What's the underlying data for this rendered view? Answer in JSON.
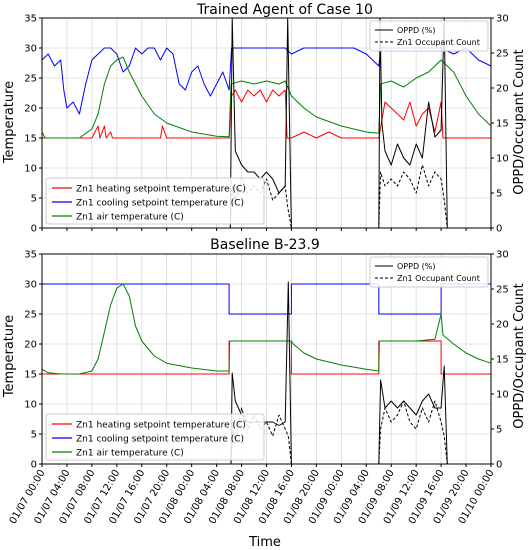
{
  "figure": {
    "xlabel": "Time"
  },
  "colors": {
    "heating": "#ff0000",
    "cooling": "#0000ff",
    "air": "#008000",
    "oppd": "#000000",
    "occupant": "#000000",
    "grid": "#d9d9d9"
  },
  "chart_data": [
    {
      "type": "line",
      "title": "Trained Agent of Case 10",
      "ylabel": "Temperature",
      "y2label": "OPPD/Occupant Count",
      "xlabel": "",
      "ylim": [
        0,
        35
      ],
      "y2lim": [
        0,
        30
      ],
      "yticks": [
        "0",
        "5",
        "10",
        "15",
        "20",
        "25",
        "30",
        "35"
      ],
      "y2ticks": [
        "0",
        "5",
        "10",
        "15",
        "20",
        "25",
        "30"
      ],
      "xlim": [
        0,
        72
      ],
      "grid": true,
      "legend_left": [
        "Zn1 heating setpoint temperature (C)",
        "Zn1 cooling setpoint temperature (C)",
        "Zn1 air temperature (C)"
      ],
      "legend_left_placement": "lower-left",
      "legend_right": [
        "OPPD (%)",
        "Zn1 Occupant Count"
      ],
      "legend_right_placement": "upper-right",
      "series": [
        {
          "name": "Zn1 heating setpoint temperature (C)",
          "axis": "left",
          "color": "#ff0000",
          "style": "solid",
          "x": [
            0,
            4,
            8,
            9,
            9.3,
            10,
            10.3,
            11,
            11.3,
            12,
            16,
            19,
            19.3,
            20,
            24,
            28,
            30,
            30.4,
            31,
            32,
            33,
            34,
            35,
            36,
            37,
            38,
            39,
            39.3,
            40,
            42,
            44,
            46,
            48,
            52,
            54,
            55,
            56,
            57,
            58,
            59,
            60,
            61,
            62,
            63,
            64,
            64.3,
            66,
            70,
            72
          ],
          "y": [
            15,
            15,
            15,
            17,
            15,
            17,
            15,
            16,
            15,
            15,
            15,
            15,
            17,
            15,
            15,
            15,
            15,
            22,
            23,
            21,
            23,
            22,
            23,
            21,
            23,
            22,
            23,
            15,
            15,
            16,
            15,
            16,
            15,
            15,
            15,
            21,
            20,
            19,
            18,
            21,
            17,
            19,
            20,
            16,
            21,
            15,
            15,
            15,
            15
          ]
        },
        {
          "name": "Zn1 cooling setpoint temperature (C)",
          "axis": "left",
          "color": "#0000ff",
          "style": "solid",
          "x": [
            0,
            1,
            2,
            3,
            3.5,
            4,
            5,
            6,
            7,
            8,
            9,
            10,
            11,
            12,
            13,
            14,
            15,
            16,
            17,
            18,
            19,
            20,
            21,
            22,
            23,
            24,
            25,
            26,
            27,
            28,
            29,
            30,
            30.4,
            32,
            34,
            36,
            38,
            39,
            40,
            42,
            44,
            46,
            48,
            50,
            52,
            54,
            54.4,
            56,
            58,
            60,
            62,
            64,
            66,
            68,
            70,
            72
          ],
          "y": [
            28,
            29,
            27,
            28,
            23,
            20,
            21,
            19,
            24,
            28,
            29,
            30,
            30,
            29,
            26,
            27,
            30,
            29,
            30,
            30,
            28,
            30,
            29,
            24,
            23,
            26,
            27,
            24,
            22,
            24,
            26,
            23,
            30,
            30,
            30,
            30,
            30,
            30,
            29,
            30,
            30,
            30,
            30,
            30,
            29,
            27,
            30,
            30,
            30,
            30,
            30,
            30,
            29,
            30,
            28,
            27
          ]
        },
        {
          "name": "Zn1 air temperature (C)",
          "axis": "left",
          "color": "#008000",
          "style": "solid",
          "x": [
            0,
            0.5,
            2,
            4,
            6,
            8,
            9,
            10,
            11,
            12,
            13,
            14,
            15,
            16,
            18,
            20,
            24,
            28,
            30,
            30.3,
            32,
            34,
            36,
            38,
            39,
            40,
            42,
            44,
            48,
            52,
            54,
            54.3,
            56,
            58,
            60,
            62,
            64,
            66,
            68,
            70,
            72
          ],
          "y": [
            16,
            15,
            15,
            15,
            15,
            16.5,
            19,
            24,
            27,
            28,
            28.5,
            26,
            24,
            22,
            19,
            17.5,
            16,
            15.3,
            15.2,
            24,
            24.5,
            24,
            24.5,
            24,
            24.5,
            22,
            20,
            18.5,
            17,
            16,
            15.8,
            24,
            24.5,
            23.5,
            25,
            26,
            28,
            26,
            22,
            19,
            17
          ]
        },
        {
          "name": "OPPD (%)",
          "axis": "right",
          "color": "#000000",
          "style": "solid",
          "x": [
            0,
            30.2,
            30.5,
            31,
            32,
            33,
            34,
            35,
            36,
            37,
            38,
            39,
            39.4,
            40,
            54,
            54.2,
            54.5,
            55,
            56,
            57,
            58,
            59,
            60,
            61,
            62,
            63,
            64,
            64.5,
            65,
            72
          ],
          "y": [
            0,
            0,
            30,
            11,
            9,
            8,
            8,
            7,
            8,
            7,
            5,
            6,
            30,
            0,
            0,
            30,
            15,
            11,
            9,
            12,
            10,
            9,
            12,
            10,
            18,
            13,
            14,
            30,
            0,
            0
          ]
        },
        {
          "name": "Zn1 Occupant Count",
          "axis": "right",
          "color": "#000000",
          "style": "dashed",
          "x": [
            0,
            30.2,
            30.5,
            31,
            32,
            33,
            34,
            35,
            36,
            37,
            38,
            39,
            39.4,
            40,
            54,
            54.3,
            55,
            56,
            57,
            58,
            59,
            60,
            61,
            62,
            63,
            64,
            64.5,
            65,
            72
          ],
          "y": [
            0,
            0,
            6,
            4,
            7,
            5,
            6,
            5,
            7,
            4,
            5,
            6,
            3,
            0,
            0,
            8,
            6,
            7,
            6,
            8,
            7,
            5,
            9,
            6,
            8,
            7,
            4,
            0,
            0
          ]
        }
      ]
    },
    {
      "type": "line",
      "title": "Baseline B-23.9",
      "ylabel": "Temperature",
      "y2label": "OPPD/Occupant Count",
      "xlabel": "Time",
      "ylim": [
        0,
        35
      ],
      "y2lim": [
        0,
        30
      ],
      "yticks": [
        "0",
        "5",
        "10",
        "15",
        "20",
        "25",
        "30",
        "35"
      ],
      "y2ticks": [
        "0",
        "5",
        "10",
        "15",
        "20",
        "25",
        "30"
      ],
      "xlim": [
        0,
        72
      ],
      "xticks": [
        "01/07 00:00",
        "01/07 04:00",
        "01/07 08:00",
        "01/07 12:00",
        "01/07 16:00",
        "01/07 20:00",
        "01/08 00:00",
        "01/08 04:00",
        "01/08 08:00",
        "01/08 12:00",
        "01/08 16:00",
        "01/08 20:00",
        "01/09 00:00",
        "01/09 04:00",
        "01/09 08:00",
        "01/09 12:00",
        "01/09 16:00",
        "01/09 20:00",
        "01/10 00:00"
      ],
      "grid": true,
      "legend_left": [
        "Zn1 heating setpoint temperature (C)",
        "Zn1 cooling setpoint temperature (C)",
        "Zn1 air temperature (C)"
      ],
      "legend_left_placement": "lower-left",
      "legend_right": [
        "OPPD (%)",
        "Zn1 Occupant Count"
      ],
      "legend_right_placement": "upper-right",
      "series": [
        {
          "name": "Zn1 heating setpoint temperature (C)",
          "axis": "left",
          "color": "#ff0000",
          "style": "solid",
          "x": [
            0,
            30,
            30,
            40,
            40,
            54,
            54,
            64,
            64,
            72
          ],
          "y": [
            15,
            15,
            20.5,
            20.5,
            15,
            15,
            20.5,
            20.5,
            15,
            15
          ]
        },
        {
          "name": "Zn1 cooling setpoint temperature (C)",
          "axis": "left",
          "color": "#0000ff",
          "style": "solid",
          "x": [
            0,
            30,
            30,
            40,
            40,
            54,
            54,
            64,
            64,
            72
          ],
          "y": [
            30,
            30,
            25,
            25,
            30,
            30,
            25,
            25,
            30,
            30
          ]
        },
        {
          "name": "Zn1 air temperature (C)",
          "axis": "left",
          "color": "#008000",
          "style": "solid",
          "x": [
            0,
            1,
            3,
            6,
            8,
            9,
            10,
            11,
            12,
            13,
            14,
            15,
            16,
            18,
            20,
            24,
            28,
            30,
            30.1,
            32,
            36,
            40,
            40.3,
            42,
            44,
            48,
            52,
            54,
            54.1,
            56,
            60,
            63,
            64,
            64.3,
            66,
            68,
            70,
            72
          ],
          "y": [
            15.8,
            15.2,
            15,
            15,
            15.5,
            17.5,
            22,
            26.5,
            29.3,
            30,
            28,
            23,
            20.5,
            18,
            16.8,
            16,
            15.5,
            15.5,
            20.5,
            20.5,
            20.5,
            20.5,
            20,
            18.5,
            17.5,
            16.5,
            15.8,
            15.5,
            20.5,
            20.5,
            20.5,
            20.8,
            25,
            21.5,
            20,
            18.5,
            17.5,
            16.8
          ]
        },
        {
          "name": "OPPD (%)",
          "axis": "right",
          "color": "#000000",
          "style": "solid",
          "x": [
            0,
            30.3,
            30.5,
            31,
            32,
            33,
            34,
            35,
            36,
            37,
            38,
            39,
            39.5,
            40,
            54,
            54.3,
            55,
            56,
            57,
            58,
            59,
            60,
            61,
            62,
            63,
            64,
            64.5,
            65,
            72
          ],
          "y": [
            0,
            0,
            13,
            9,
            7,
            6,
            6,
            6,
            6,
            6,
            5.5,
            6,
            26,
            0,
            0,
            12,
            8,
            9,
            8,
            9,
            8,
            7,
            9,
            10,
            8,
            8,
            14,
            0,
            0
          ]
        },
        {
          "name": "Zn1 Occupant Count",
          "axis": "right",
          "color": "#000000",
          "style": "dashed",
          "x": [
            0,
            30.3,
            30.6,
            31,
            32,
            33,
            34,
            35,
            36,
            37,
            38,
            39,
            39.5,
            40,
            54,
            54.3,
            55,
            56,
            57,
            58,
            59,
            60,
            61,
            62,
            63,
            64,
            64.5,
            65,
            72
          ],
          "y": [
            0,
            0,
            6,
            3,
            8,
            5,
            7,
            5,
            6,
            4,
            7,
            5,
            4,
            0,
            0,
            5,
            8,
            6,
            7,
            9,
            6,
            5,
            8,
            6,
            9,
            6,
            4,
            0,
            0
          ]
        }
      ]
    }
  ]
}
